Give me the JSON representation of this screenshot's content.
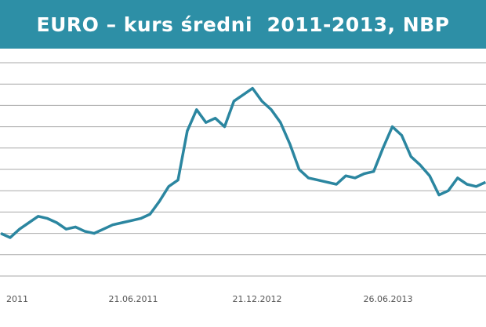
{
  "title": "EURO – kurs średni  2011-2013, NBP",
  "colors": {
    "header": "#2d8fa6",
    "line": "#2b86a0",
    "grid": "#aaaaaa",
    "text": "#555555"
  },
  "chart_data": {
    "type": "line",
    "title": "EURO – kurs średni  2011-2013, NBP",
    "xlabel": "",
    "ylabel": "",
    "xticks": [
      "2011",
      "21.06.2011",
      "21.12.2012",
      "26.06.2013"
    ],
    "ylim": [
      3.7,
      4.7
    ],
    "grid": true,
    "series": [
      {
        "name": "",
        "x": [
          "2011-01-03",
          "2011-01-24",
          "2011-02-14",
          "2011-03-07",
          "2011-03-28",
          "2011-04-18",
          "2011-05-09",
          "2011-05-30",
          "2011-06-20",
          "2011-07-11",
          "2011-08-01",
          "2011-08-22",
          "2011-09-12",
          "2011-10-03",
          "2011-10-24",
          "2011-11-14",
          "2011-12-05",
          "2011-12-26",
          "2012-01-16",
          "2012-02-06",
          "2012-02-27",
          "2012-03-19",
          "2012-04-09",
          "2012-04-30",
          "2012-05-21",
          "2012-06-11",
          "2012-07-02",
          "2012-07-23",
          "2012-08-13",
          "2012-09-03",
          "2012-09-24",
          "2012-10-15",
          "2012-11-05",
          "2012-11-26",
          "2012-12-17",
          "2013-01-07",
          "2013-01-28",
          "2013-02-18",
          "2013-03-11",
          "2013-04-01",
          "2013-04-22",
          "2013-05-13",
          "2013-06-03",
          "2013-06-24",
          "2013-07-15",
          "2013-08-05",
          "2013-08-26",
          "2013-09-16",
          "2013-10-07",
          "2013-10-28",
          "2013-11-18",
          "2013-12-09",
          "2013-12-30"
        ],
        "values": [
          3.9,
          3.88,
          3.92,
          3.95,
          3.98,
          3.97,
          3.95,
          3.92,
          3.93,
          3.91,
          3.9,
          3.92,
          3.94,
          3.95,
          3.96,
          3.97,
          3.99,
          4.05,
          4.12,
          4.15,
          4.38,
          4.48,
          4.42,
          4.44,
          4.4,
          4.52,
          4.55,
          4.58,
          4.52,
          4.48,
          4.42,
          4.32,
          4.2,
          4.16,
          4.15,
          4.14,
          4.13,
          4.17,
          4.16,
          4.18,
          4.19,
          4.3,
          4.4,
          4.36,
          4.26,
          4.22,
          4.17,
          4.08,
          4.1,
          4.16,
          4.13,
          4.12,
          4.14
        ]
      }
    ]
  }
}
